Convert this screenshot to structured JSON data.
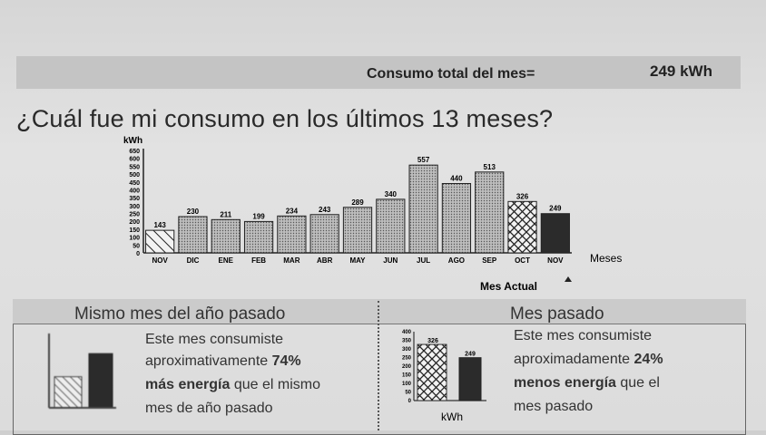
{
  "header": {
    "total_label": "Consumo total del mes=",
    "total_value": "249 kWh"
  },
  "question": "¿Cuál fue mi consumo en los últimos 13 meses?",
  "chart_data": {
    "type": "bar",
    "ylabel": "kWh",
    "xlabel": "Meses",
    "ylim": [
      0,
      650
    ],
    "yticks": [
      0,
      50,
      100,
      150,
      200,
      250,
      300,
      350,
      400,
      450,
      500,
      550,
      600,
      650
    ],
    "categories": [
      "NOV",
      "DIC",
      "ENE",
      "FEB",
      "MAR",
      "ABR",
      "MAY",
      "JUN",
      "JUL",
      "AGO",
      "SEP",
      "OCT",
      "NOV"
    ],
    "values": [
      143,
      230,
      211,
      199,
      234,
      243,
      289,
      340,
      557,
      440,
      513,
      326,
      249
    ],
    "current_label": "Mes Actual"
  },
  "comparison_left": {
    "title": "Mismo mes del año pasado",
    "line1": "Este mes consumiste",
    "line2_prefix": "aproximativamente ",
    "percent": "74%",
    "line3_bold": "más energía",
    "line3_rest": " que el mismo",
    "line4": "mes de año pasado",
    "mini_values": [
      143,
      249
    ]
  },
  "comparison_right": {
    "title": "Mes pasado",
    "line1": "Este mes consumiste",
    "line2_prefix": "aproximadamente ",
    "percent": "24%",
    "line3_bold": "menos energía",
    "line3_rest": " que el",
    "line4": "mes pasado",
    "mini_yticks": [
      0,
      50,
      100,
      150,
      200,
      250,
      300,
      350,
      400
    ],
    "mini_values": [
      326,
      249
    ],
    "mini_unit": "kWh"
  }
}
